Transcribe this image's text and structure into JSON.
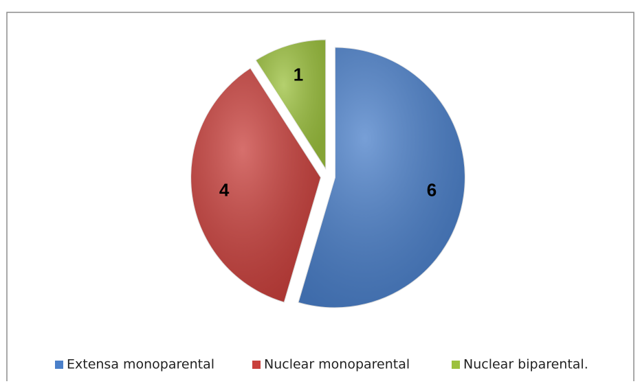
{
  "chart_data": {
    "type": "pie",
    "categories": [
      "Extensa monoparental",
      "Nuclear monoparental",
      "Nuclear biparental."
    ],
    "values": [
      6,
      4,
      1
    ],
    "colors": [
      "#4a7fc9",
      "#c9403c",
      "#9cc13e"
    ],
    "legend": "bottom"
  }
}
